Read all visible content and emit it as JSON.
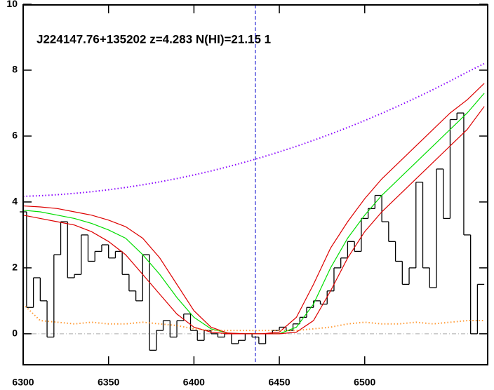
{
  "chart_data": {
    "type": "line",
    "title": "J224147.76+135202 z=4.283 N(HI)=21.15 1",
    "xlim": [
      6300,
      6572
    ],
    "ylim": [
      -0.94,
      9.98
    ],
    "xticks": [
      6300,
      6350,
      6400,
      6450,
      6500
    ],
    "yticks": [
      0,
      2,
      4,
      6,
      8,
      10
    ],
    "vline": {
      "x": 6436,
      "color": "#0000cc"
    },
    "hline": {
      "y": 0,
      "color": "#aaaaaa"
    },
    "series": [
      {
        "style": "step",
        "color": "#000000",
        "x": [
          6300,
          6304,
          6308,
          6312,
          6316,
          6320,
          6324,
          6328,
          6332,
          6336,
          6340,
          6344,
          6348,
          6352,
          6356,
          6360,
          6364,
          6368,
          6372,
          6376,
          6380,
          6384,
          6388,
          6392,
          6396,
          6400,
          6404,
          6408,
          6412,
          6416,
          6420,
          6424,
          6428,
          6432,
          6436,
          6440,
          6444,
          6448,
          6452,
          6456,
          6460,
          6464,
          6468,
          6472,
          6476,
          6480,
          6484,
          6488,
          6492,
          6496,
          6500,
          6504,
          6508,
          6512,
          6516,
          6520,
          6524,
          6528,
          6532,
          6536,
          6540,
          6544,
          6548,
          6552,
          6556,
          6560,
          6564,
          6568
        ],
        "values": [
          3.7,
          0.8,
          1.7,
          1.0,
          -0.1,
          2.4,
          3.4,
          1.7,
          1.8,
          3.0,
          2.2,
          2.5,
          2.7,
          2.3,
          2.5,
          1.8,
          1.3,
          1.0,
          2.4,
          -0.5,
          0.1,
          0.4,
          -0.1,
          0.4,
          0.6,
          0.1,
          -0.2,
          0.1,
          0.0,
          -0.1,
          0.0,
          -0.3,
          -0.2,
          0.0,
          -0.1,
          -0.3,
          0.0,
          0.1,
          0.2,
          0.1,
          0.3,
          0.5,
          0.8,
          1.0,
          0.9,
          1.3,
          2.0,
          2.3,
          2.8,
          2.5,
          3.5,
          3.8,
          4.2,
          3.4,
          2.8,
          2.2,
          1.5,
          2.0,
          4.6,
          2.0,
          1.4,
          5.0,
          3.5,
          6.5,
          6.7,
          3.0,
          0.0,
          1.5
        ]
      },
      {
        "style": "solid",
        "color": "#00dd00",
        "x": [
          6300,
          6310,
          6320,
          6330,
          6340,
          6350,
          6360,
          6370,
          6380,
          6390,
          6400,
          6410,
          6420,
          6430,
          6440,
          6450,
          6460,
          6470,
          6480,
          6490,
          6500,
          6510,
          6520,
          6530,
          6540,
          6550,
          6560,
          6570
        ],
        "values": [
          3.75,
          3.7,
          3.6,
          3.5,
          3.35,
          3.15,
          2.9,
          2.4,
          1.8,
          1.1,
          0.5,
          0.15,
          0.02,
          0,
          0,
          0,
          0.2,
          0.9,
          2.0,
          2.9,
          3.6,
          4.2,
          4.7,
          5.2,
          5.7,
          6.2,
          6.7,
          7.3
        ]
      },
      {
        "style": "solid",
        "color": "#dd0000",
        "x": [
          6300,
          6310,
          6320,
          6330,
          6340,
          6350,
          6360,
          6370,
          6380,
          6390,
          6400,
          6410,
          6420,
          6430,
          6440,
          6450,
          6460,
          6470,
          6480,
          6490,
          6500,
          6510,
          6520,
          6530,
          6540,
          6550,
          6560,
          6570
        ],
        "values": [
          3.88,
          3.85,
          3.8,
          3.7,
          3.6,
          3.45,
          3.25,
          2.9,
          2.3,
          1.5,
          0.7,
          0.2,
          0.02,
          0,
          0,
          0.05,
          0.5,
          1.5,
          2.6,
          3.4,
          4.1,
          4.7,
          5.2,
          5.7,
          6.2,
          6.7,
          7.1,
          7.6
        ]
      },
      {
        "style": "solid",
        "color": "#dd0000",
        "x": [
          6300,
          6310,
          6320,
          6330,
          6340,
          6350,
          6360,
          6370,
          6380,
          6390,
          6400,
          6410,
          6420,
          6430,
          6440,
          6450,
          6460,
          6470,
          6480,
          6490,
          6500,
          6510,
          6520,
          6530,
          6540,
          6550,
          6560,
          6570
        ],
        "values": [
          3.6,
          3.5,
          3.4,
          3.3,
          3.1,
          2.8,
          2.4,
          1.8,
          1.2,
          0.6,
          0.2,
          0.05,
          0,
          0,
          0,
          0,
          0.05,
          0.4,
          1.3,
          2.3,
          3.1,
          3.7,
          4.2,
          4.7,
          5.2,
          5.7,
          6.2,
          6.9
        ]
      },
      {
        "style": "dotted",
        "color": "#8800ff",
        "x": [
          6300,
          6310,
          6320,
          6330,
          6340,
          6350,
          6360,
          6370,
          6380,
          6390,
          6400,
          6410,
          6420,
          6430,
          6440,
          6450,
          6460,
          6470,
          6480,
          6490,
          6500,
          6510,
          6520,
          6530,
          6540,
          6550,
          6560,
          6570
        ],
        "values": [
          4.17,
          4.19,
          4.22,
          4.26,
          4.31,
          4.37,
          4.44,
          4.52,
          4.61,
          4.71,
          4.82,
          4.94,
          5.07,
          5.21,
          5.36,
          5.52,
          5.69,
          5.87,
          6.06,
          6.26,
          6.47,
          6.69,
          6.92,
          7.16,
          7.41,
          7.67,
          7.94,
          8.2
        ]
      },
      {
        "style": "dotted",
        "color": "#ff9933",
        "x": [
          6300,
          6310,
          6320,
          6330,
          6340,
          6350,
          6360,
          6370,
          6380,
          6390,
          6400,
          6410,
          6420,
          6430,
          6440,
          6450,
          6460,
          6470,
          6480,
          6490,
          6500,
          6510,
          6520,
          6530,
          6540,
          6550,
          6560,
          6570
        ],
        "values": [
          0.9,
          0.4,
          0.35,
          0.3,
          0.35,
          0.3,
          0.3,
          0.35,
          0.3,
          0.25,
          0.15,
          0.1,
          0.1,
          0.1,
          0.1,
          0.1,
          0.1,
          0.15,
          0.2,
          0.3,
          0.35,
          0.3,
          0.3,
          0.35,
          0.3,
          0.35,
          0.4,
          0.4
        ]
      }
    ]
  }
}
